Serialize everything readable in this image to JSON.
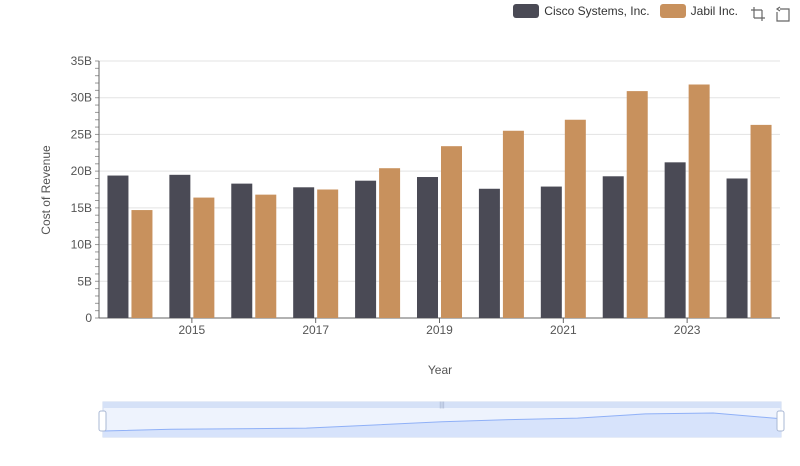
{
  "chart_data": {
    "type": "bar",
    "title": "",
    "xlabel": "Year",
    "ylabel": "Cost of Revenue",
    "categories": [
      "2014",
      "2015",
      "2016",
      "2017",
      "2018",
      "2019",
      "2020",
      "2021",
      "2022",
      "2023",
      "2024"
    ],
    "x_tick_labels": [
      "2015",
      "2017",
      "2019",
      "2021",
      "2023"
    ],
    "y_tick_labels": [
      "0",
      "5B",
      "10B",
      "15B",
      "20B",
      "25B",
      "30B",
      "35B"
    ],
    "ylim": [
      0,
      35
    ],
    "value_unit": "billions",
    "grid": true,
    "legend_position": "top-right",
    "series": [
      {
        "name": "Cisco Systems, Inc.",
        "color": "#4a4a55",
        "values": [
          19.4,
          19.5,
          18.3,
          17.8,
          18.7,
          19.2,
          17.6,
          17.9,
          19.3,
          21.2,
          19.0
        ]
      },
      {
        "name": "Jabil Inc.",
        "color": "#c8915d",
        "values": [
          14.7,
          16.4,
          16.8,
          17.5,
          20.4,
          23.4,
          25.5,
          27.0,
          30.9,
          31.8,
          26.3
        ]
      }
    ]
  },
  "toolbox": {
    "icons": [
      "zoom-icon",
      "restore-icon"
    ]
  },
  "slider": {
    "start": 0,
    "end": 100,
    "fill_color": "#d7e3fb",
    "line_color": "#8fb0f7"
  }
}
